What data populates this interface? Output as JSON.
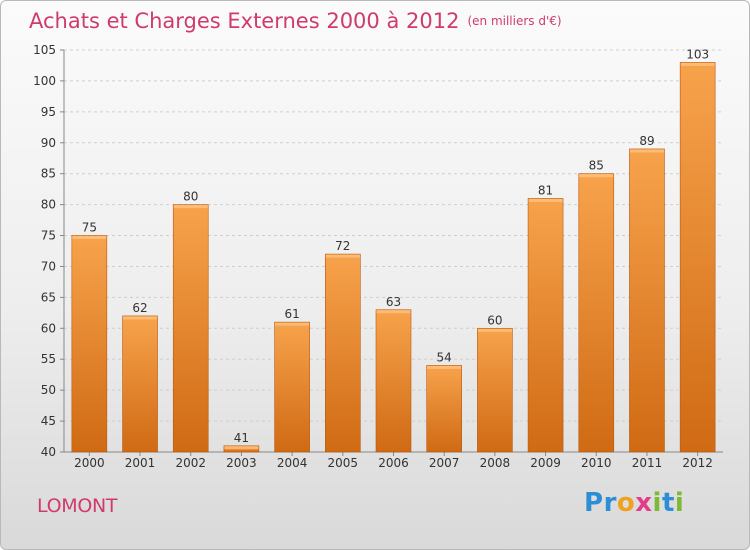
{
  "title": "Achats et Charges Externes 2000 à 2012",
  "subtitle": "(en milliers d'€)",
  "town": "LOMONT",
  "logo": {
    "text": "Proxiti",
    "letters": [
      {
        "ch": "P",
        "color": "#2c8fd6"
      },
      {
        "ch": "r",
        "color": "#2c8fd6"
      },
      {
        "ch": "o",
        "color": "#f0a11e"
      },
      {
        "ch": "x",
        "color": "#e23b8a"
      },
      {
        "ch": "i",
        "color": "#7cb934"
      },
      {
        "ch": "t",
        "color": "#2c8fd6"
      },
      {
        "ch": "i",
        "color": "#7cb934"
      }
    ]
  },
  "colors": {
    "bar_top": "#f7a34c",
    "bar_bottom": "#d06a14",
    "bar_edge": "#b95a0e",
    "title": "#d03a6f"
  },
  "chart_data": {
    "type": "bar",
    "categories": [
      "2000",
      "2001",
      "2002",
      "2003",
      "2004",
      "2005",
      "2006",
      "2007",
      "2008",
      "2009",
      "2010",
      "2011",
      "2012"
    ],
    "values": [
      75,
      62,
      80,
      41,
      61,
      72,
      63,
      54,
      60,
      81,
      85,
      89,
      103
    ],
    "title": "Achats et Charges Externes 2000 à 2012",
    "subtitle": "(en milliers d'€)",
    "ylim": [
      40,
      105
    ],
    "yticks": [
      40,
      45,
      50,
      55,
      60,
      65,
      70,
      75,
      80,
      85,
      90,
      95,
      100,
      105
    ],
    "grid": true,
    "legend": "none"
  }
}
